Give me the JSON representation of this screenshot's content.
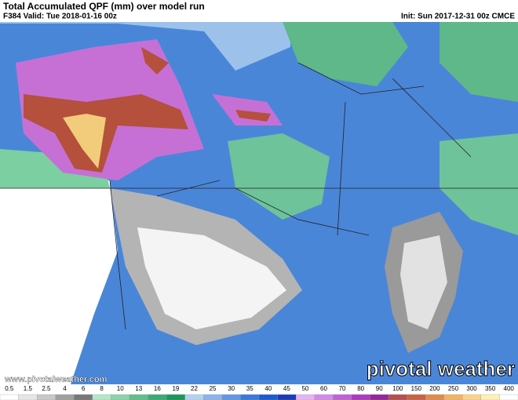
{
  "header": {
    "title": "Total Accumulated QPF (mm) over model run",
    "valid": "F384 Valid: Tue 2018-01-16 00z",
    "init": "Init: Sun 2017-12-31 00z CMCE"
  },
  "footer": {
    "url": "www.pivotalweather.com",
    "logo": "pivotal weather"
  },
  "colorbar": {
    "labels": [
      0.5,
      1.5,
      2.5,
      4,
      6,
      8,
      10,
      13,
      16,
      19,
      22,
      25,
      30,
      35,
      40,
      45,
      50,
      60,
      70,
      80,
      90,
      100,
      150,
      200,
      250,
      300,
      350,
      400
    ],
    "colors": [
      "#ffffff",
      "#e6e6e6",
      "#c8c8c8",
      "#a0a0a0",
      "#787878",
      "#b4e6c8",
      "#8cd2aa",
      "#64be8c",
      "#3caa78",
      "#1e965a",
      "#b4d2f0",
      "#8cb4eb",
      "#6496e6",
      "#3c78dc",
      "#1e5ad2",
      "#1e3cb4",
      "#e6b4f0",
      "#d28ce6",
      "#be64d2",
      "#aa3cbe",
      "#962896",
      "#b45050",
      "#c86446",
      "#dc8c50",
      "#f0b464",
      "#fad28c",
      "#fff0b4",
      "#ffffff"
    ]
  }
}
